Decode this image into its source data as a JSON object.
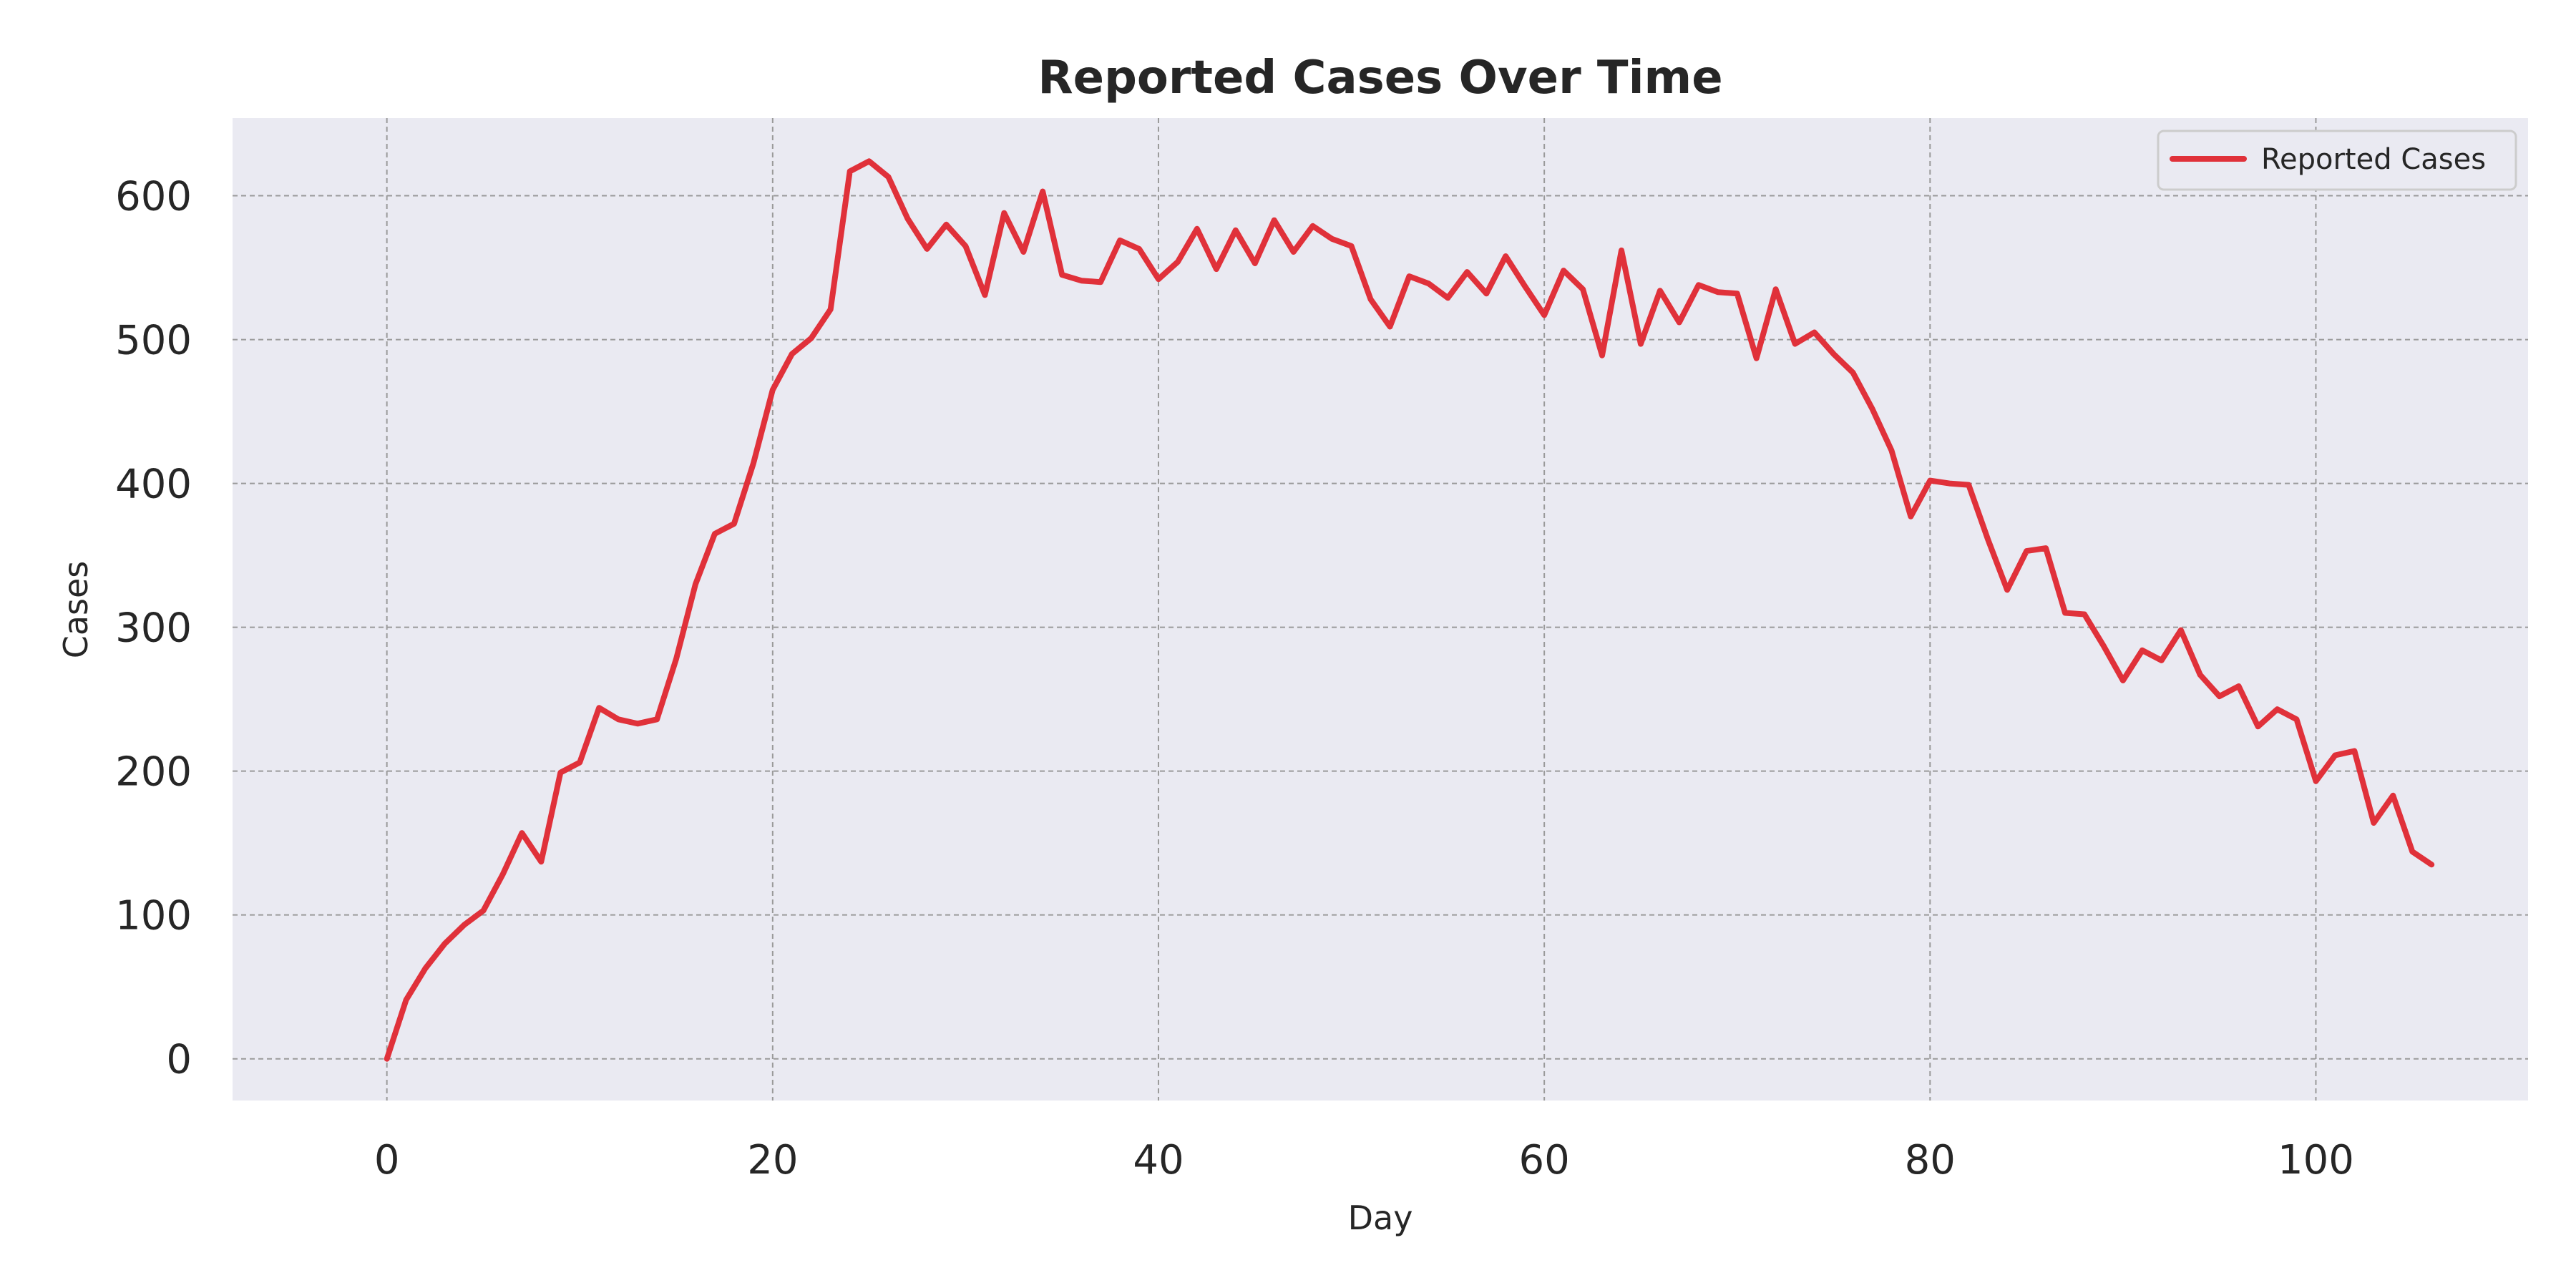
{
  "chart_data": {
    "type": "line",
    "title": "Reported Cases Over Time",
    "xlabel": "Day",
    "ylabel": "Cases",
    "xlim": [
      -8,
      111
    ],
    "ylim": [
      -29,
      654
    ],
    "xticks": [
      0,
      20,
      40,
      60,
      80,
      100
    ],
    "yticks": [
      0,
      100,
      200,
      300,
      400,
      500,
      600
    ],
    "grid": true,
    "legend_position": "top-right",
    "colors": {
      "background": "#eaeaf2",
      "line": "#e0313a"
    },
    "series": [
      {
        "name": "Reported Cases",
        "x": [
          0,
          1,
          2,
          3,
          4,
          5,
          6,
          7,
          8,
          9,
          10,
          11,
          12,
          13,
          14,
          15,
          16,
          17,
          18,
          19,
          20,
          21,
          22,
          23,
          24,
          25,
          26,
          27,
          28,
          29,
          30,
          31,
          32,
          33,
          34,
          35,
          36,
          37,
          38,
          39,
          40,
          41,
          42,
          43,
          44,
          45,
          46,
          47,
          48,
          49,
          50,
          51,
          52,
          53,
          54,
          55,
          56,
          57,
          58,
          59,
          60,
          61,
          62,
          63,
          64,
          65,
          66,
          67,
          68,
          69,
          70,
          71,
          72,
          73,
          74,
          75,
          76,
          77,
          78,
          79,
          80,
          81,
          82,
          83,
          84,
          85,
          86,
          87,
          88,
          89,
          90,
          91,
          92,
          93,
          94,
          95,
          96,
          97,
          98,
          99,
          100,
          101,
          102,
          103,
          104,
          105,
          106
        ],
        "y": [
          0,
          41,
          63,
          80,
          93,
          103,
          128,
          157,
          137,
          199,
          206,
          244,
          236,
          233,
          236,
          278,
          330,
          365,
          372,
          414,
          465,
          490,
          501,
          521,
          617,
          624,
          613,
          584,
          563,
          580,
          565,
          531,
          588,
          561,
          603,
          545,
          541,
          540,
          569,
          563,
          542,
          554,
          577,
          549,
          576,
          553,
          583,
          561,
          579,
          570,
          565,
          528,
          509,
          544,
          539,
          529,
          547,
          532,
          558,
          537,
          517,
          548,
          535,
          489,
          562,
          497,
          534,
          512,
          538,
          533,
          532,
          487,
          535,
          497,
          505,
          490,
          477,
          452,
          423,
          377,
          402,
          400,
          399,
          361,
          326,
          353,
          355,
          310,
          309,
          287,
          263,
          284,
          277,
          298,
          267,
          252,
          259,
          231,
          243,
          236,
          193,
          211,
          214,
          164,
          183,
          144,
          135
        ]
      }
    ]
  }
}
